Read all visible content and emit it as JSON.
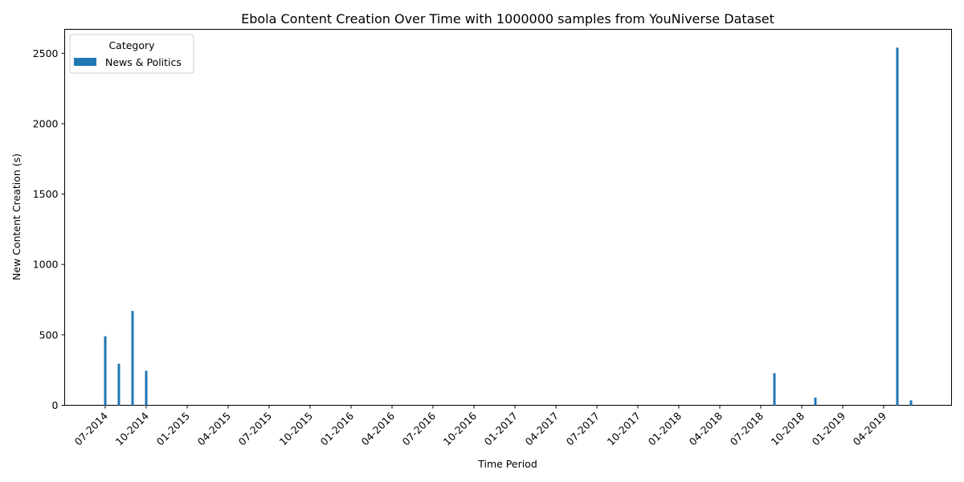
{
  "chart_data": {
    "type": "bar",
    "title": "Ebola Content Creation Over Time with 1000000 samples from YouNiverse Dataset",
    "xlabel": "Time Period",
    "ylabel": "New Content Creation (s)",
    "legend": {
      "title": "Category",
      "placement": "top-left",
      "entries": [
        {
          "name": "News & Politics",
          "color": "#1f77b4"
        }
      ]
    },
    "grid": false,
    "x_ticks": [
      "07-2014",
      "10-2014",
      "01-2015",
      "04-2015",
      "07-2015",
      "10-2015",
      "01-2016",
      "04-2016",
      "07-2016",
      "10-2016",
      "01-2017",
      "04-2017",
      "07-2017",
      "10-2017",
      "01-2018",
      "04-2018",
      "07-2018",
      "10-2018",
      "01-2019",
      "04-2019"
    ],
    "y_ticks": [
      0,
      500,
      1000,
      1500,
      2000,
      2500
    ],
    "ylim": [
      0,
      2670
    ],
    "series": [
      {
        "name": "News & Politics",
        "color": "#1f77b4",
        "points": [
          {
            "x": "07-2014",
            "y": 490
          },
          {
            "x": "08-2014",
            "y": 295
          },
          {
            "x": "09-2014",
            "y": 670
          },
          {
            "x": "10-2014",
            "y": 245
          },
          {
            "x": "08-2018",
            "y": 228
          },
          {
            "x": "11-2018",
            "y": 55
          },
          {
            "x": "05-2019",
            "y": 2540
          },
          {
            "x": "06-2019",
            "y": 35
          }
        ]
      }
    ]
  }
}
